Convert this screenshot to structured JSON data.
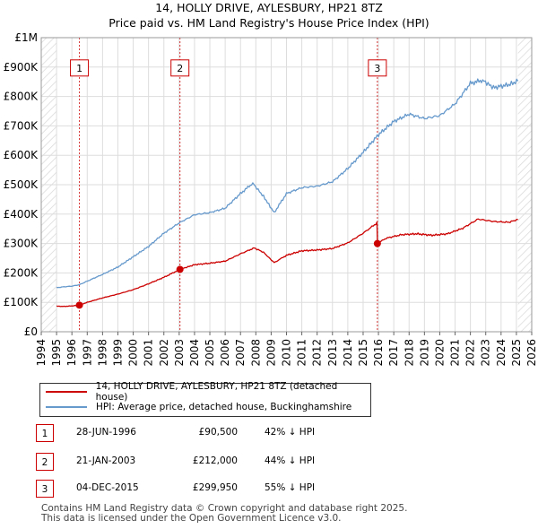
{
  "chart_data": {
    "type": "line",
    "title": "14, HOLLY DRIVE, AYLESBURY, HP21 8TZ",
    "subtitle": "Price paid vs. HM Land Registry's House Price Index (HPI)",
    "xlim": [
      1994,
      2026
    ],
    "ylim": [
      0,
      1000000
    ],
    "x_ticks": [
      1994,
      1995,
      1996,
      1997,
      1998,
      1999,
      2000,
      2001,
      2002,
      2003,
      2004,
      2005,
      2006,
      2007,
      2008,
      2009,
      2010,
      2011,
      2012,
      2013,
      2014,
      2015,
      2016,
      2017,
      2018,
      2019,
      2020,
      2021,
      2022,
      2023,
      2024,
      2025,
      2026
    ],
    "y_ticks": [
      {
        "value": 0,
        "label": "£0"
      },
      {
        "value": 100000,
        "label": "£100K"
      },
      {
        "value": 200000,
        "label": "£200K"
      },
      {
        "value": 300000,
        "label": "£300K"
      },
      {
        "value": 400000,
        "label": "£400K"
      },
      {
        "value": 500000,
        "label": "£500K"
      },
      {
        "value": 600000,
        "label": "£600K"
      },
      {
        "value": 700000,
        "label": "£700K"
      },
      {
        "value": 800000,
        "label": "£800K"
      },
      {
        "value": 900000,
        "label": "£900K"
      },
      {
        "value": 1000000,
        "label": "£1M"
      }
    ],
    "data_start": 1995,
    "data_end": 2025.1,
    "shaded_ranges": [
      [
        1994,
        1995
      ],
      [
        2025.1,
        2026
      ]
    ],
    "series": [
      {
        "name": "14, HOLLY DRIVE, AYLESBURY, HP21 8TZ (detached house)",
        "color": "#cc0000",
        "points": [
          [
            1995,
            87000
          ],
          [
            1995.5,
            86000
          ],
          [
            1996,
            88000
          ],
          [
            1996.49,
            90500
          ],
          [
            1997,
            100000
          ],
          [
            1998,
            115000
          ],
          [
            1999,
            128000
          ],
          [
            2000,
            143000
          ],
          [
            2001,
            163000
          ],
          [
            2002,
            185000
          ],
          [
            2003.05,
            212000
          ],
          [
            2004,
            228000
          ],
          [
            2005,
            233000
          ],
          [
            2006,
            240000
          ],
          [
            2007,
            265000
          ],
          [
            2007.9,
            285000
          ],
          [
            2008.5,
            270000
          ],
          [
            2009.2,
            235000
          ],
          [
            2010,
            260000
          ],
          [
            2011,
            275000
          ],
          [
            2012,
            278000
          ],
          [
            2013,
            283000
          ],
          [
            2014,
            302000
          ],
          [
            2015,
            335000
          ],
          [
            2015.9,
            370000
          ],
          [
            2015.93,
            299950
          ],
          [
            2016.5,
            318000
          ],
          [
            2017.5,
            330000
          ],
          [
            2018.5,
            333000
          ],
          [
            2019.5,
            328000
          ],
          [
            2020.5,
            333000
          ],
          [
            2021.5,
            352000
          ],
          [
            2022.5,
            383000
          ],
          [
            2023.5,
            375000
          ],
          [
            2024.5,
            372000
          ],
          [
            2025.1,
            382000
          ]
        ]
      },
      {
        "name": "HPI: Average price, detached house, Buckinghamshire",
        "color": "#6699cc",
        "points": [
          [
            1995,
            150000
          ],
          [
            1995.5,
            153000
          ],
          [
            1996,
            155000
          ],
          [
            1996.5,
            160000
          ],
          [
            1997,
            172000
          ],
          [
            1998,
            195000
          ],
          [
            1999,
            220000
          ],
          [
            2000,
            255000
          ],
          [
            2001,
            290000
          ],
          [
            2002,
            335000
          ],
          [
            2003,
            370000
          ],
          [
            2004,
            398000
          ],
          [
            2005,
            405000
          ],
          [
            2006,
            420000
          ],
          [
            2007,
            470000
          ],
          [
            2007.8,
            505000
          ],
          [
            2008.5,
            460000
          ],
          [
            2009.2,
            405000
          ],
          [
            2010,
            470000
          ],
          [
            2011,
            490000
          ],
          [
            2012,
            495000
          ],
          [
            2013,
            510000
          ],
          [
            2014,
            555000
          ],
          [
            2015,
            610000
          ],
          [
            2016,
            670000
          ],
          [
            2017,
            715000
          ],
          [
            2018,
            740000
          ],
          [
            2019,
            725000
          ],
          [
            2020,
            735000
          ],
          [
            2021,
            775000
          ],
          [
            2022,
            845000
          ],
          [
            2022.8,
            855000
          ],
          [
            2023.5,
            830000
          ],
          [
            2024.5,
            840000
          ],
          [
            2025.1,
            852000
          ]
        ]
      }
    ],
    "sales": [
      {
        "label": "1",
        "x": 1996.49,
        "value": 90500
      },
      {
        "label": "2",
        "x": 2003.05,
        "value": 212000
      },
      {
        "label": "3",
        "x": 2015.93,
        "value": 299950
      }
    ],
    "marker_label_value": 900000
  },
  "legend": {
    "property_label": "14, HOLLY DRIVE, AYLESBURY, HP21 8TZ (detached house)",
    "hpi_label": "HPI: Average price, detached house, Buckinghamshire"
  },
  "table": [
    {
      "num": "1",
      "date": "28-JUN-1996",
      "price": "£90,500",
      "pct": "42% ↓ HPI"
    },
    {
      "num": "2",
      "date": "21-JAN-2003",
      "price": "£212,000",
      "pct": "44% ↓ HPI"
    },
    {
      "num": "3",
      "date": "04-DEC-2015",
      "price": "£299,950",
      "pct": "55% ↓ HPI"
    }
  ],
  "footer": {
    "line1": "Contains HM Land Registry data © Crown copyright and database right 2025.",
    "line2": "This data is licensed under the Open Government Licence v3.0."
  },
  "colors": {
    "property": "#cc0000",
    "hpi": "#6699cc",
    "marker": "#cc0000",
    "hatch": "#d9d9d9"
  }
}
